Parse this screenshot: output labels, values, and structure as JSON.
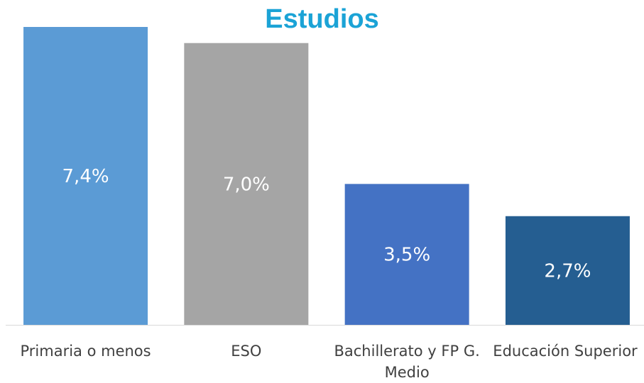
{
  "chart_data": {
    "type": "bar",
    "title": "Estudios",
    "categories": [
      "Primaria o menos",
      "ESO",
      "Bachillerato y FP G. Medio",
      "Educación Superior"
    ],
    "values": [
      7.4,
      7.0,
      3.5,
      2.7
    ],
    "value_labels": [
      "7,4%",
      "7,0%",
      "3,5%",
      "2,7%"
    ],
    "colors": [
      "#5b9bd5",
      "#a5a5a5",
      "#4472c4",
      "#255e91"
    ]
  }
}
